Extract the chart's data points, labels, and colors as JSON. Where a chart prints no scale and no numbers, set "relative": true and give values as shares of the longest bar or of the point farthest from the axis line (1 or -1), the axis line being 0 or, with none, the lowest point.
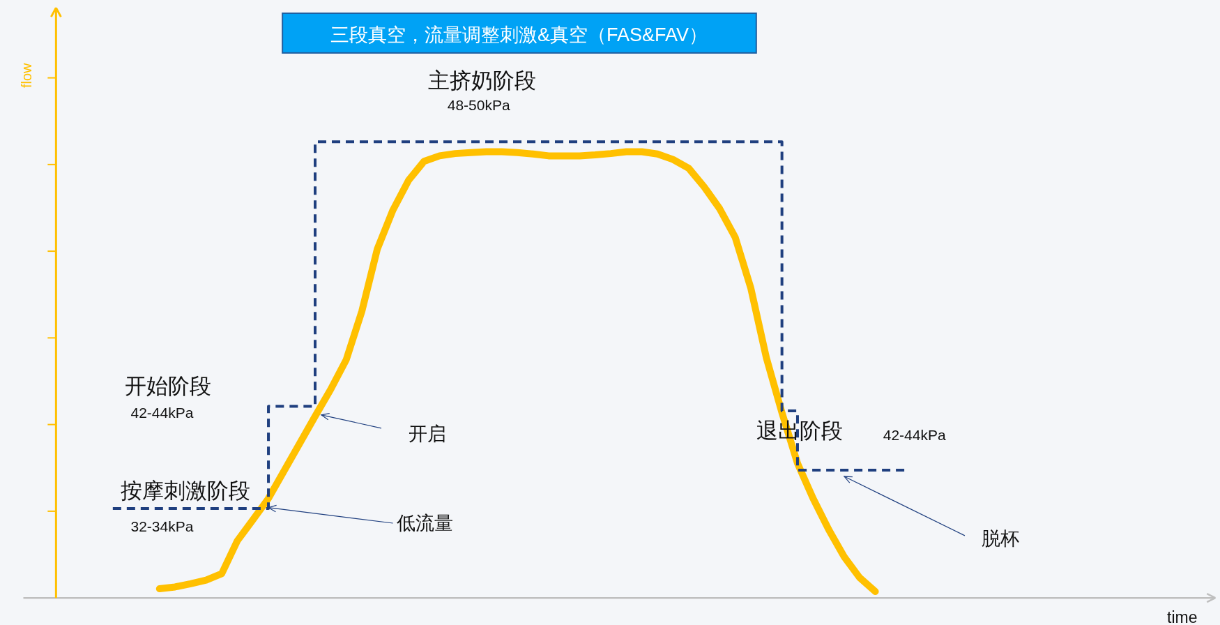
{
  "chart_data": {
    "type": "line",
    "title": "三段真空，流量调整刺激&真空（FAS&FAV）",
    "relative": true,
    "legend": false,
    "categories": [
      null,
      null,
      null,
      null,
      null,
      null,
      null,
      null,
      null,
      null,
      null,
      null,
      null,
      null,
      null,
      null,
      null,
      null,
      null,
      null,
      null,
      null,
      null,
      null,
      null,
      null,
      null,
      null,
      null,
      null,
      null,
      null,
      null,
      null,
      null,
      null,
      null,
      null,
      null,
      null,
      null,
      null,
      null,
      null,
      null,
      null,
      null,
      null,
      null,
      null,
      null,
      null
    ],
    "series": [
      {
        "type": "line",
        "color": "#ffc000",
        "values": [
          null,
          null,
          null,
          0.02,
          0.024,
          0.031,
          0.039,
          0.053,
          0.125,
          0.171,
          0.218,
          0.278,
          0.338,
          0.398,
          0.457,
          0.522,
          0.628,
          0.765,
          0.85,
          0.915,
          0.957,
          0.969,
          0.974,
          0.976,
          0.978,
          0.978,
          0.976,
          0.973,
          0.969,
          0.969,
          0.969,
          0.971,
          0.974,
          0.978,
          0.978,
          0.973,
          0.961,
          0.942,
          0.901,
          0.853,
          0.79,
          0.679,
          0.526,
          0.406,
          0.295,
          0.218,
          0.15,
          0.09,
          0.044,
          0.014,
          null,
          null
        ]
      },
      {
        "type": "step",
        "color": "#1f3f7f",
        "line_style": "dashed",
        "values": [
          0.196,
          0.196,
          0.196,
          0.196,
          0.196,
          0.196,
          0.196,
          0.196,
          0.196,
          0.196,
          0.42,
          0.42,
          0.42,
          1,
          1,
          1,
          1,
          1,
          1,
          1,
          1,
          1,
          1,
          1,
          1,
          1,
          1,
          1,
          1,
          1,
          1,
          1,
          1,
          1,
          1,
          1,
          1,
          1,
          1,
          1,
          1,
          1,
          1,
          0.41,
          0.28,
          0.28,
          0.28,
          0.28,
          0.28,
          0.28,
          0.28,
          0.28
        ]
      }
    ],
    "annotations": [
      "主挤奶阶段",
      "48-50kPa",
      "开始阶段",
      "42-44kPa",
      "按摩刺激阶段",
      "32-34kPa",
      "退出阶段",
      "42-44kPa",
      "开启",
      "低流量",
      "脱杯",
      "flow",
      "time"
    ]
  }
}
